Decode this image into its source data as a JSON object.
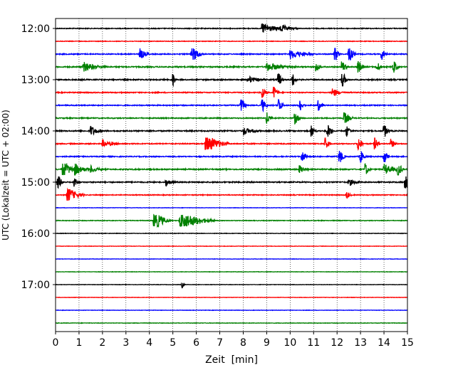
{
  "chart_data": {
    "type": "line",
    "title": "",
    "xlabel": "Zeit  [min]",
    "ylabel": "UTC (Lokalzeit = UTC + 02:00)",
    "xlim": [
      0,
      15
    ],
    "x_ticks": [
      "0",
      "1",
      "2",
      "3",
      "4",
      "5",
      "6",
      "7",
      "8",
      "9",
      "10",
      "11",
      "12",
      "13",
      "14",
      "15"
    ],
    "y_tick_labels": [
      "12:00",
      "13:00",
      "14:00",
      "15:00",
      "16:00",
      "17:00"
    ],
    "grid": {
      "vertical": true,
      "horizontal": false
    },
    "trace_colors": [
      "#000000",
      "#ff0000",
      "#0000ff",
      "#008000"
    ],
    "traces": [
      {
        "time": "12:00",
        "color": "#000000",
        "noise": 0.25,
        "events": [
          [
            8.8,
            1.0,
            0.4
          ],
          [
            9.6,
            0.5,
            0.3
          ]
        ]
      },
      {
        "time": "12:15",
        "color": "#ff0000",
        "noise": 0.18,
        "events": []
      },
      {
        "time": "12:30",
        "color": "#0000ff",
        "noise": 0.3,
        "events": [
          [
            3.6,
            1.0,
            0.15
          ],
          [
            5.8,
            1.6,
            0.2
          ],
          [
            10.0,
            0.8,
            0.4
          ],
          [
            11.9,
            1.6,
            0.1
          ],
          [
            12.5,
            1.8,
            0.12
          ],
          [
            13.9,
            1.2,
            0.1
          ]
        ]
      },
      {
        "time": "12:45",
        "color": "#008000",
        "noise": 0.35,
        "events": [
          [
            1.2,
            0.8,
            0.4
          ],
          [
            9.0,
            0.7,
            0.5
          ],
          [
            11.1,
            1.1,
            0.1
          ],
          [
            12.2,
            1.3,
            0.1
          ],
          [
            12.9,
            1.4,
            0.1
          ],
          [
            13.7,
            1.0,
            0.1
          ],
          [
            14.4,
            1.4,
            0.1
          ]
        ]
      },
      {
        "time": "13:00",
        "color": "#000000",
        "noise": 0.35,
        "events": [
          [
            5.0,
            1.6,
            0.05
          ],
          [
            9.5,
            1.8,
            0.08
          ],
          [
            10.1,
            1.6,
            0.08
          ],
          [
            12.2,
            2.2,
            0.1
          ],
          [
            8.2,
            0.6,
            0.3
          ]
        ]
      },
      {
        "time": "13:15",
        "color": "#ff0000",
        "noise": 0.3,
        "events": [
          [
            8.8,
            1.1,
            0.1
          ],
          [
            9.3,
            1.2,
            0.1
          ],
          [
            11.8,
            0.8,
            0.2
          ]
        ]
      },
      {
        "time": "13:30",
        "color": "#0000ff",
        "noise": 0.3,
        "events": [
          [
            7.9,
            1.8,
            0.1
          ],
          [
            8.8,
            1.4,
            0.1
          ],
          [
            9.5,
            1.6,
            0.1
          ],
          [
            10.4,
            1.2,
            0.1
          ],
          [
            11.2,
            1.0,
            0.1
          ]
        ]
      },
      {
        "time": "13:45",
        "color": "#008000",
        "noise": 0.3,
        "events": [
          [
            9.0,
            1.3,
            0.1
          ],
          [
            10.2,
            1.3,
            0.1
          ],
          [
            12.3,
            1.2,
            0.15
          ]
        ]
      },
      {
        "time": "14:00",
        "color": "#000000",
        "noise": 0.35,
        "events": [
          [
            1.5,
            0.9,
            0.2
          ],
          [
            8.0,
            0.6,
            0.3
          ],
          [
            10.9,
            1.3,
            0.1
          ],
          [
            11.6,
            1.5,
            0.1
          ],
          [
            12.4,
            1.1,
            0.1
          ],
          [
            14.0,
            1.4,
            0.1
          ]
        ]
      },
      {
        "time": "14:15",
        "color": "#ff0000",
        "noise": 0.3,
        "events": [
          [
            2.0,
            0.6,
            0.3
          ],
          [
            6.4,
            1.8,
            0.4
          ],
          [
            11.5,
            1.4,
            0.1
          ],
          [
            12.9,
            1.6,
            0.1
          ],
          [
            13.6,
            1.3,
            0.1
          ],
          [
            14.3,
            1.0,
            0.1
          ]
        ]
      },
      {
        "time": "14:30",
        "color": "#0000ff",
        "noise": 0.3,
        "events": [
          [
            10.5,
            1.3,
            0.1
          ],
          [
            12.1,
            1.6,
            0.1
          ],
          [
            13.0,
            1.3,
            0.1
          ],
          [
            14.0,
            1.4,
            0.1
          ]
        ]
      },
      {
        "time": "14:45",
        "color": "#008000",
        "noise": 0.35,
        "events": [
          [
            0.3,
            1.4,
            0.3
          ],
          [
            0.8,
            0.8,
            0.3
          ],
          [
            1.5,
            0.6,
            0.2
          ],
          [
            10.4,
            0.8,
            0.15
          ],
          [
            13.2,
            1.2,
            0.1
          ],
          [
            14.0,
            0.9,
            0.3
          ],
          [
            14.6,
            1.3,
            0.1
          ]
        ]
      },
      {
        "time": "15:00",
        "color": "#000000",
        "noise": 0.35,
        "events": [
          [
            0.1,
            1.6,
            0.1
          ],
          [
            0.8,
            0.9,
            0.1
          ],
          [
            4.7,
            0.6,
            0.2
          ],
          [
            12.5,
            0.6,
            0.2
          ],
          [
            14.9,
            1.5,
            0.15
          ]
        ]
      },
      {
        "time": "15:15",
        "color": "#ff0000",
        "noise": 0.25,
        "events": [
          [
            0.5,
            1.4,
            0.3
          ],
          [
            12.4,
            0.7,
            0.1
          ]
        ]
      },
      {
        "time": "15:30",
        "color": "#0000ff",
        "noise": 0.12,
        "events": []
      },
      {
        "time": "15:45",
        "color": "#008000",
        "noise": 0.2,
        "events": [
          [
            4.2,
            1.8,
            0.3
          ],
          [
            5.3,
            1.8,
            0.6
          ]
        ]
      },
      {
        "time": "16:00",
        "color": "#000000",
        "noise": 0.15,
        "events": []
      },
      {
        "time": "16:15",
        "color": "#ff0000",
        "noise": 0.12,
        "events": []
      },
      {
        "time": "16:30",
        "color": "#0000ff",
        "noise": 0.12,
        "events": []
      },
      {
        "time": "16:45",
        "color": "#008000",
        "noise": 0.12,
        "events": []
      },
      {
        "time": "17:00",
        "color": "#000000",
        "noise": 0.12,
        "events": [
          [
            5.4,
            0.6,
            0.05
          ]
        ]
      },
      {
        "time": "17:15",
        "color": "#ff0000",
        "noise": 0.12,
        "events": []
      },
      {
        "time": "17:30",
        "color": "#0000ff",
        "noise": 0.12,
        "events": []
      },
      {
        "time": "17:45",
        "color": "#008000",
        "noise": 0.15,
        "events": []
      }
    ]
  }
}
